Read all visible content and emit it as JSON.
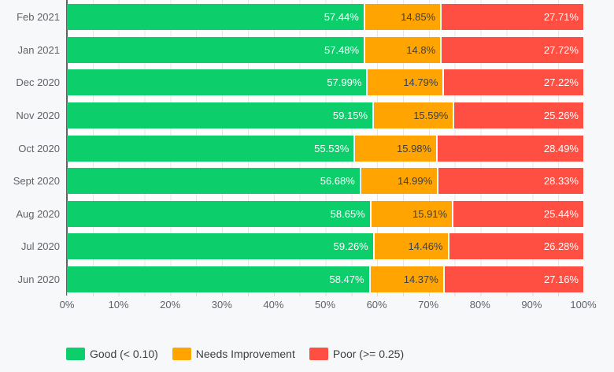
{
  "chart_data": {
    "type": "bar",
    "orientation": "horizontal",
    "stacked": true,
    "unit": "%",
    "categories": [
      "Feb 2021",
      "Jan 2021",
      "Dec 2020",
      "Nov 2020",
      "Oct 2020",
      "Sept 2020",
      "Aug 2020",
      "Jul 2020",
      "Jun 2020"
    ],
    "series": [
      {
        "name": "Good (< 0.10)",
        "color": "#0CCE6B",
        "text_style": "light",
        "values": [
          57.44,
          57.48,
          57.99,
          59.15,
          55.53,
          56.68,
          58.65,
          59.26,
          58.47
        ],
        "labels": [
          "57.44%",
          "57.48%",
          "57.99%",
          "59.15%",
          "55.53%",
          "56.68%",
          "58.65%",
          "59.26%",
          "58.47%"
        ]
      },
      {
        "name": "Needs Improvement",
        "color": "#FFA400",
        "text_style": "dark",
        "values": [
          14.85,
          14.8,
          14.79,
          15.59,
          15.98,
          14.99,
          15.91,
          14.46,
          14.37
        ],
        "labels": [
          "14.85%",
          "14.8%",
          "14.79%",
          "15.59%",
          "15.98%",
          "14.99%",
          "15.91%",
          "14.46%",
          "14.37%"
        ]
      },
      {
        "name": "Poor (>= 0.25)",
        "color": "#FF4E42",
        "text_style": "light",
        "values": [
          27.71,
          27.72,
          27.22,
          25.26,
          28.49,
          28.33,
          25.44,
          26.28,
          27.16
        ],
        "labels": [
          "27.71%",
          "27.72%",
          "27.22%",
          "25.26%",
          "28.49%",
          "28.33%",
          "25.44%",
          "26.28%",
          "27.16%"
        ]
      }
    ],
    "x_axis": {
      "range": [
        0,
        100
      ],
      "tick_labels": [
        "0%",
        "10%",
        "20%",
        "30%",
        "40%",
        "50%",
        "60%",
        "70%",
        "80%",
        "90%",
        "100%"
      ],
      "minor_gridline_step_percent": 5,
      "grid": true
    },
    "legend": {
      "position": "bottom-left",
      "items": [
        "Good (< 0.10)",
        "Needs Improvement",
        "Poor (>= 0.25)"
      ]
    },
    "colors": {
      "good": "#0CCE6B",
      "needs_improvement": "#FFA400",
      "poor": "#FF4E42",
      "axis_line": "#5f6368",
      "gridline": "#e4e6e9",
      "axis_text": "#5f6368",
      "legend_text": "#3c4043",
      "page_background": "#f7f8fa",
      "plot_background": "#fdfdfe"
    }
  }
}
